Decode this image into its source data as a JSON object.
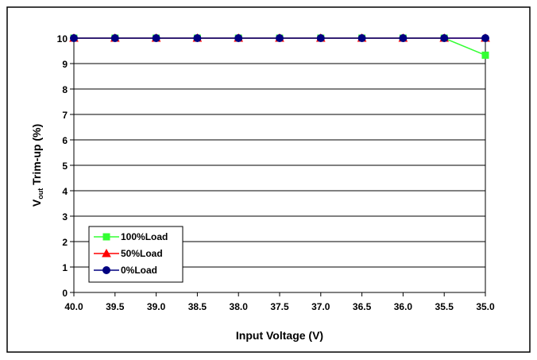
{
  "chart_data": {
    "type": "line",
    "xlabel": "Input Voltage (V)",
    "ylabel_main": "V",
    "ylabel_sub": "out",
    "ylabel_rest": " Trim-up (%)",
    "x": [
      40.0,
      39.5,
      39.0,
      38.5,
      38.0,
      37.5,
      37.0,
      36.5,
      36.0,
      35.5,
      35.0
    ],
    "x_tick_labels": [
      "40.0",
      "39.5",
      "39.0",
      "38.5",
      "38.0",
      "37.5",
      "37.0",
      "36.5",
      "36.0",
      "35.5",
      "35.0"
    ],
    "y_ticks": [
      0,
      1,
      2,
      3,
      4,
      5,
      6,
      7,
      8,
      9,
      10
    ],
    "y_tick_labels": [
      "0",
      "1",
      "2",
      "3",
      "4",
      "5",
      "6",
      "7",
      "8",
      "9",
      "10"
    ],
    "ylim": [
      0,
      10
    ],
    "x_reversed": true,
    "grid": "horizontal",
    "legend_placement": "bottom-left",
    "series": [
      {
        "name": "100% Load",
        "legend_label": "100%Load",
        "marker": "square",
        "color": "#33ff33",
        "values": [
          10,
          10,
          10,
          10,
          10,
          10,
          10,
          10,
          10,
          10,
          9.33
        ]
      },
      {
        "name": "50% Load",
        "legend_label": "50%Load",
        "marker": "triangle",
        "color": "#ff0000",
        "values": [
          10,
          10,
          10,
          10,
          10,
          10,
          10,
          10,
          10,
          10,
          10
        ]
      },
      {
        "name": "0% Load",
        "legend_label": "0%Load",
        "marker": "circle",
        "color": "#000080",
        "values": [
          10,
          10,
          10,
          10,
          10,
          10,
          10,
          10,
          10,
          10,
          10
        ]
      }
    ]
  }
}
